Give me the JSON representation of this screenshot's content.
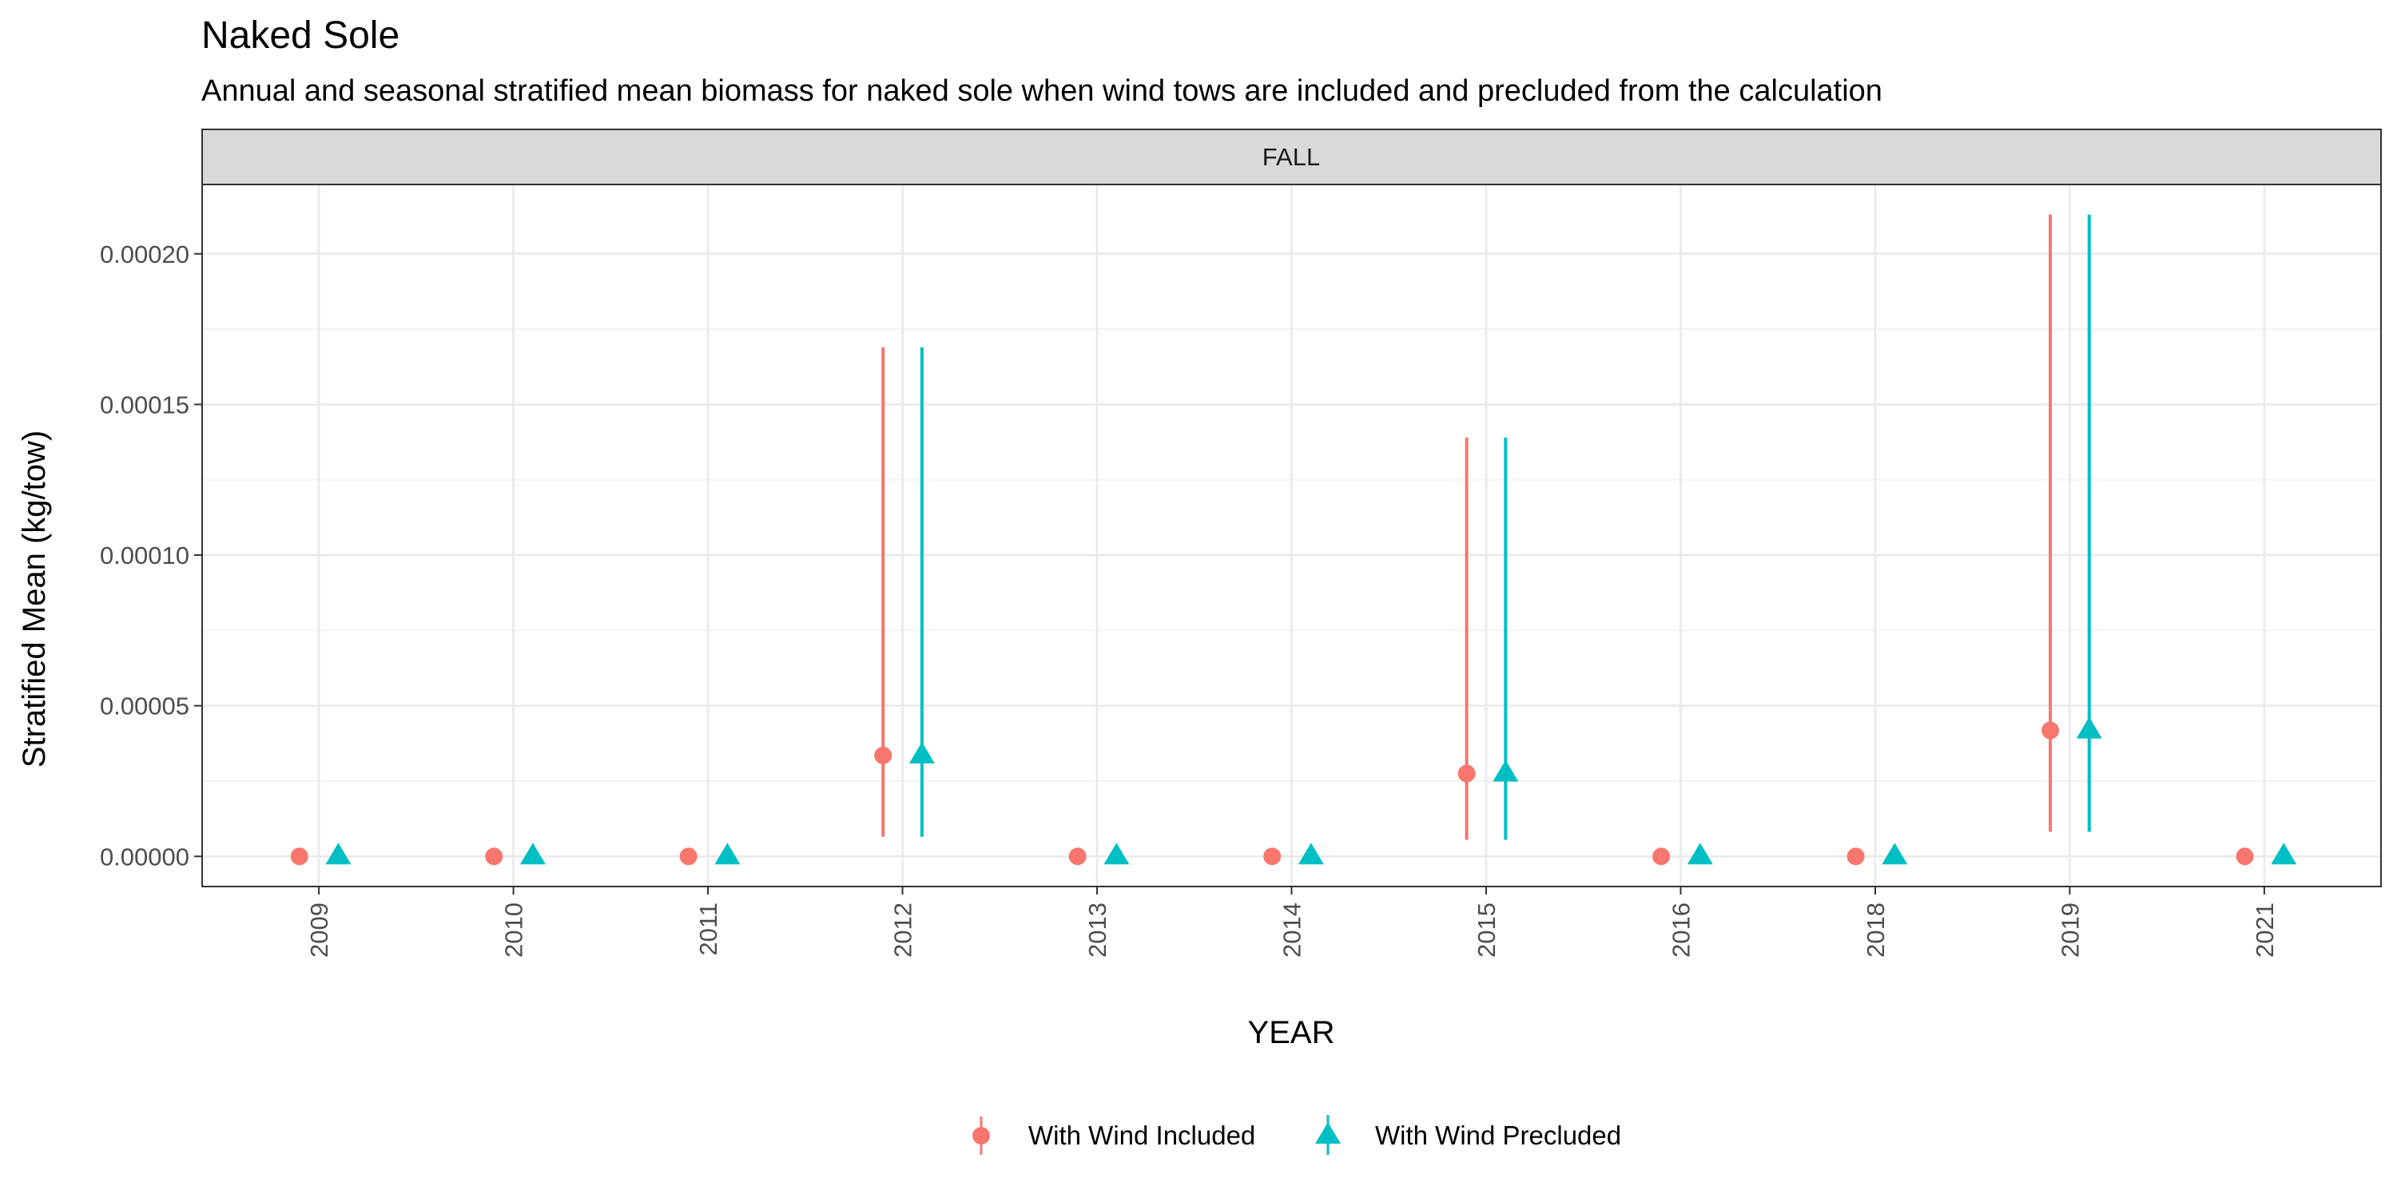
{
  "chart_data": {
    "type": "scatter",
    "title": "Naked Sole",
    "subtitle": "Annual and seasonal stratified mean biomass for naked sole when wind tows are included and precluded from the calculation",
    "facet": "FALL",
    "xlabel": "YEAR",
    "ylabel": "Stratified Mean (kg/tow)",
    "categories": [
      "2009",
      "2010",
      "2011",
      "2012",
      "2013",
      "2014",
      "2015",
      "2016",
      "2018",
      "2019",
      "2021"
    ],
    "ylim": [
      -1e-05,
      0.000223
    ],
    "y_ticks": [
      0,
      5e-05,
      0.0001,
      0.00015,
      0.0002
    ],
    "y_tick_labels": [
      "0.00000",
      "0.00005",
      "0.00010",
      "0.00015",
      "0.00020"
    ],
    "grid": true,
    "legend_position": "bottom",
    "series": [
      {
        "name": "With Wind Included",
        "color": "#F8766D",
        "marker": "circle",
        "values": [
          0,
          0,
          0,
          3.35e-05,
          0,
          0,
          2.75e-05,
          0,
          0,
          4.18e-05,
          0
        ],
        "lower": [
          0,
          0,
          0,
          6.5e-06,
          0,
          0,
          5.5e-06,
          0,
          0,
          8.2e-06,
          0
        ],
        "upper": [
          0,
          0,
          0,
          0.000169,
          0,
          0,
          0.000139,
          0,
          0,
          0.000213,
          0
        ]
      },
      {
        "name": "With Wind Precluded",
        "color": "#00BFC4",
        "marker": "triangle",
        "values": [
          0,
          0,
          0,
          3.35e-05,
          0,
          0,
          2.75e-05,
          0,
          0,
          4.18e-05,
          0
        ],
        "lower": [
          0,
          0,
          0,
          6.5e-06,
          0,
          0,
          5.5e-06,
          0,
          0,
          8.2e-06,
          0
        ],
        "upper": [
          0,
          0,
          0,
          0.000169,
          0,
          0,
          0.000139,
          0,
          0,
          0.000213,
          0
        ]
      }
    ]
  }
}
